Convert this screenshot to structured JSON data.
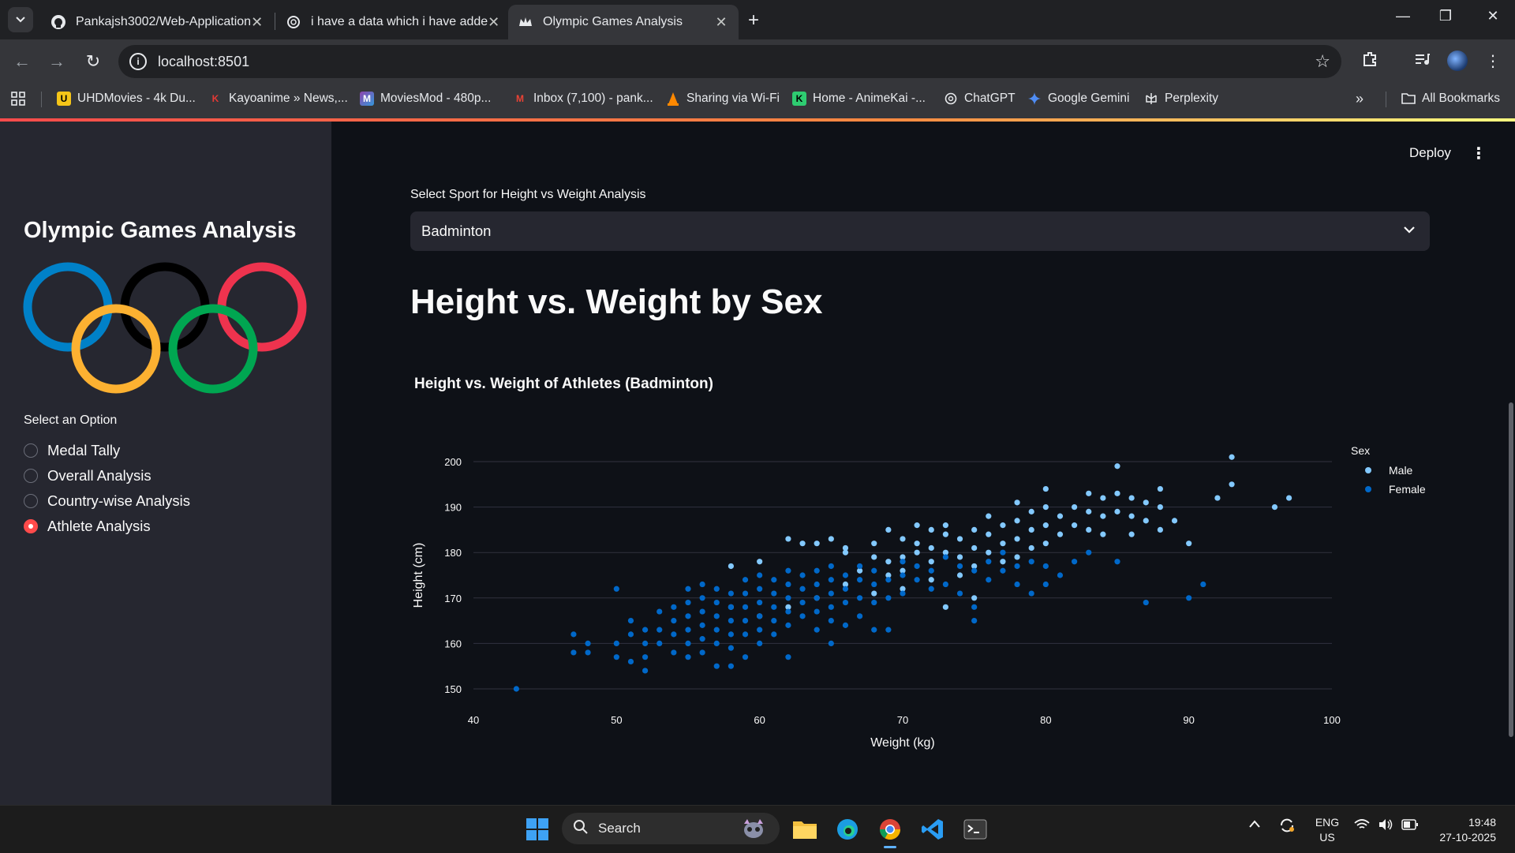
{
  "browser": {
    "tabs": [
      {
        "title": "Pankajsh3002/Web-Application",
        "active": false
      },
      {
        "title": "i have a data which i have adde",
        "active": false
      },
      {
        "title": "Olympic Games Analysis",
        "active": true
      }
    ],
    "url": "localhost:8501",
    "bookmarks": [
      {
        "label": "UHDMovies - 4k Du...",
        "icon": "uhd-icon",
        "color": "#f5c518"
      },
      {
        "label": "Kayoanime » News,...",
        "icon": "kayoanime-icon",
        "color": "#e53935"
      },
      {
        "label": "MoviesMod - 480p...",
        "icon": "moviesmod-icon",
        "color": "#8e44ad"
      },
      {
        "label": "Inbox (7,100) - pank...",
        "icon": "gmail-icon",
        "color": "#ea4335"
      },
      {
        "label": "Sharing via Wi-Fi",
        "icon": "vlc-icon",
        "color": "#ff8800"
      },
      {
        "label": "Home - AnimeKai -...",
        "icon": "animekai-icon",
        "color": "#2ecc71"
      },
      {
        "label": "ChatGPT",
        "icon": "chatgpt-icon",
        "color": "#e8eaed"
      },
      {
        "label": "Google Gemini",
        "icon": "gemini-icon",
        "color": "#4f8df5"
      },
      {
        "label": "Perplexity",
        "icon": "perplexity-icon",
        "color": "#e8eaed"
      }
    ],
    "all_bookmarks": "All Bookmarks"
  },
  "sidebar": {
    "title": "Olympic Games Analysis",
    "radio_label": "Select an Option",
    "options": [
      {
        "label": "Medal Tally",
        "selected": false
      },
      {
        "label": "Overall Analysis",
        "selected": false
      },
      {
        "label": "Country-wise Analysis",
        "selected": false
      },
      {
        "label": "Athlete Analysis",
        "selected": true
      }
    ],
    "ring_colors": [
      "#0081c8",
      "#000000",
      "#ee334e",
      "#fcb131",
      "#00a651"
    ]
  },
  "header": {
    "deploy": "Deploy"
  },
  "main": {
    "select_label": "Select Sport for Height vs Weight Analysis",
    "select_value": "Badminton",
    "heading": "Height vs. Weight by Sex"
  },
  "chart_data": {
    "type": "scatter",
    "title": "Height vs. Weight of Athletes (Badminton)",
    "xlabel": "Weight (kg)",
    "ylabel": "Height (cm)",
    "xlim": [
      40,
      100
    ],
    "ylim": [
      150,
      200
    ],
    "xticks": [
      40,
      50,
      60,
      70,
      80,
      90,
      100
    ],
    "yticks": [
      150,
      160,
      170,
      180,
      190,
      200
    ],
    "grid": "horizontal",
    "legend_title": "Sex",
    "legend_position": "right",
    "series": [
      {
        "name": "Male",
        "color": "#83c9ff",
        "points": [
          [
            58,
            177
          ],
          [
            60,
            178
          ],
          [
            62,
            183
          ],
          [
            63,
            182
          ],
          [
            64,
            182
          ],
          [
            65,
            183
          ],
          [
            66,
            181
          ],
          [
            66,
            180
          ],
          [
            67,
            176
          ],
          [
            68,
            179
          ],
          [
            68,
            182
          ],
          [
            69,
            185
          ],
          [
            69,
            178
          ],
          [
            69,
            175
          ],
          [
            70,
            183
          ],
          [
            70,
            179
          ],
          [
            70,
            176
          ],
          [
            71,
            186
          ],
          [
            71,
            182
          ],
          [
            71,
            180
          ],
          [
            72,
            185
          ],
          [
            72,
            181
          ],
          [
            72,
            178
          ],
          [
            73,
            186
          ],
          [
            73,
            184
          ],
          [
            73,
            180
          ],
          [
            74,
            183
          ],
          [
            74,
            179
          ],
          [
            75,
            185
          ],
          [
            75,
            181
          ],
          [
            75,
            177
          ],
          [
            76,
            188
          ],
          [
            76,
            184
          ],
          [
            76,
            180
          ],
          [
            77,
            186
          ],
          [
            77,
            182
          ],
          [
            77,
            178
          ],
          [
            78,
            191
          ],
          [
            78,
            187
          ],
          [
            78,
            183
          ],
          [
            78,
            179
          ],
          [
            79,
            189
          ],
          [
            79,
            185
          ],
          [
            79,
            181
          ],
          [
            80,
            194
          ],
          [
            80,
            190
          ],
          [
            80,
            186
          ],
          [
            80,
            182
          ],
          [
            81,
            188
          ],
          [
            81,
            184
          ],
          [
            82,
            190
          ],
          [
            82,
            186
          ],
          [
            83,
            193
          ],
          [
            83,
            189
          ],
          [
            83,
            185
          ],
          [
            84,
            192
          ],
          [
            84,
            188
          ],
          [
            84,
            184
          ],
          [
            85,
            199
          ],
          [
            85,
            193
          ],
          [
            85,
            189
          ],
          [
            86,
            192
          ],
          [
            86,
            188
          ],
          [
            86,
            184
          ],
          [
            87,
            191
          ],
          [
            87,
            187
          ],
          [
            88,
            194
          ],
          [
            88,
            190
          ],
          [
            88,
            185
          ],
          [
            89,
            187
          ],
          [
            90,
            182
          ],
          [
            92,
            192
          ],
          [
            93,
            201
          ],
          [
            93,
            195
          ],
          [
            96,
            190
          ],
          [
            97,
            192
          ],
          [
            75,
            170
          ],
          [
            74,
            175
          ],
          [
            72,
            174
          ],
          [
            70,
            172
          ],
          [
            68,
            171
          ],
          [
            66,
            173
          ],
          [
            64,
            170
          ],
          [
            62,
            168
          ],
          [
            60,
            166
          ],
          [
            58,
            168
          ],
          [
            73,
            168
          ]
        ]
      },
      {
        "name": "Female",
        "color": "#0068c9",
        "points": [
          [
            43,
            150
          ],
          [
            47,
            162
          ],
          [
            47,
            158
          ],
          [
            48,
            160
          ],
          [
            48,
            158
          ],
          [
            50,
            172
          ],
          [
            50,
            160
          ],
          [
            50,
            157
          ],
          [
            51,
            165
          ],
          [
            51,
            162
          ],
          [
            51,
            156
          ],
          [
            52,
            163
          ],
          [
            52,
            160
          ],
          [
            52,
            157
          ],
          [
            52,
            154
          ],
          [
            53,
            167
          ],
          [
            53,
            163
          ],
          [
            53,
            160
          ],
          [
            54,
            168
          ],
          [
            54,
            165
          ],
          [
            54,
            162
          ],
          [
            54,
            158
          ],
          [
            55,
            172
          ],
          [
            55,
            169
          ],
          [
            55,
            166
          ],
          [
            55,
            163
          ],
          [
            55,
            160
          ],
          [
            55,
            157
          ],
          [
            56,
            173
          ],
          [
            56,
            170
          ],
          [
            56,
            167
          ],
          [
            56,
            164
          ],
          [
            56,
            161
          ],
          [
            56,
            158
          ],
          [
            57,
            172
          ],
          [
            57,
            169
          ],
          [
            57,
            166
          ],
          [
            57,
            163
          ],
          [
            57,
            160
          ],
          [
            57,
            155
          ],
          [
            58,
            171
          ],
          [
            58,
            168
          ],
          [
            58,
            165
          ],
          [
            58,
            162
          ],
          [
            58,
            159
          ],
          [
            58,
            155
          ],
          [
            59,
            174
          ],
          [
            59,
            171
          ],
          [
            59,
            168
          ],
          [
            59,
            165
          ],
          [
            59,
            162
          ],
          [
            59,
            157
          ],
          [
            60,
            175
          ],
          [
            60,
            172
          ],
          [
            60,
            169
          ],
          [
            60,
            166
          ],
          [
            60,
            163
          ],
          [
            60,
            160
          ],
          [
            61,
            174
          ],
          [
            61,
            171
          ],
          [
            61,
            168
          ],
          [
            61,
            165
          ],
          [
            61,
            162
          ],
          [
            62,
            176
          ],
          [
            62,
            173
          ],
          [
            62,
            170
          ],
          [
            62,
            167
          ],
          [
            62,
            164
          ],
          [
            62,
            157
          ],
          [
            63,
            175
          ],
          [
            63,
            172
          ],
          [
            63,
            169
          ],
          [
            63,
            166
          ],
          [
            64,
            176
          ],
          [
            64,
            173
          ],
          [
            64,
            170
          ],
          [
            64,
            167
          ],
          [
            64,
            163
          ],
          [
            65,
            177
          ],
          [
            65,
            174
          ],
          [
            65,
            171
          ],
          [
            65,
            168
          ],
          [
            65,
            165
          ],
          [
            65,
            160
          ],
          [
            66,
            175
          ],
          [
            66,
            172
          ],
          [
            66,
            169
          ],
          [
            66,
            164
          ],
          [
            67,
            177
          ],
          [
            67,
            174
          ],
          [
            67,
            170
          ],
          [
            67,
            166
          ],
          [
            68,
            176
          ],
          [
            68,
            173
          ],
          [
            68,
            169
          ],
          [
            68,
            163
          ],
          [
            69,
            174
          ],
          [
            69,
            170
          ],
          [
            69,
            163
          ],
          [
            70,
            178
          ],
          [
            70,
            175
          ],
          [
            70,
            171
          ],
          [
            71,
            177
          ],
          [
            71,
            174
          ],
          [
            72,
            176
          ],
          [
            72,
            172
          ],
          [
            73,
            179
          ],
          [
            73,
            173
          ],
          [
            74,
            177
          ],
          [
            74,
            171
          ],
          [
            75,
            176
          ],
          [
            75,
            168
          ],
          [
            75,
            165
          ],
          [
            76,
            178
          ],
          [
            76,
            174
          ],
          [
            77,
            180
          ],
          [
            77,
            176
          ],
          [
            78,
            177
          ],
          [
            78,
            173
          ],
          [
            79,
            178
          ],
          [
            79,
            171
          ],
          [
            80,
            177
          ],
          [
            80,
            173
          ],
          [
            81,
            175
          ],
          [
            82,
            178
          ],
          [
            83,
            180
          ],
          [
            85,
            178
          ],
          [
            87,
            169
          ],
          [
            90,
            170
          ],
          [
            91,
            173
          ]
        ]
      }
    ]
  },
  "taskbar": {
    "search_placeholder": "Search",
    "lang_line1": "ENG",
    "lang_line2": "US",
    "time": "19:48",
    "date": "27-10-2025"
  }
}
